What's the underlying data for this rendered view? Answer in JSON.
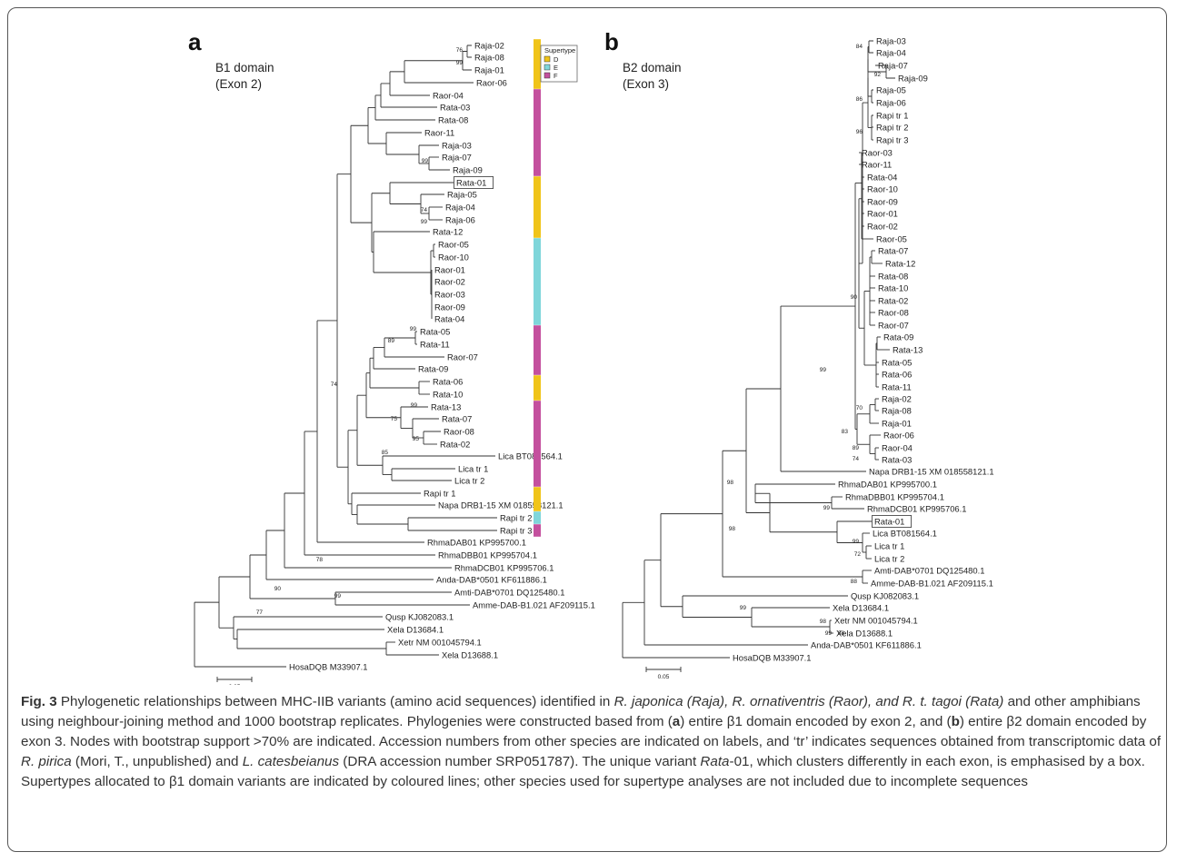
{
  "panels": [
    {
      "letter": "a",
      "title_line1": "B1 domain",
      "title_line2": "(Exon 2)",
      "scale_label": "0.05",
      "leaves": [
        "Raja-02",
        "Raja-08",
        "Raja-01",
        "Raor-06",
        "Raor-04",
        "Rata-03",
        "Rata-08",
        "Raor-11",
        "Raja-03",
        "Raja-07",
        "Raja-09",
        "Rata-01",
        "Raja-05",
        "Raja-04",
        "Raja-06",
        "Rata-12",
        "Raor-05",
        "Raor-10",
        "Raor-01",
        "Raor-02",
        "Raor-03",
        "Raor-09",
        "Rata-04",
        "Rata-05",
        "Rata-11",
        "Raor-07",
        "Rata-09",
        "Rata-06",
        "Rata-10",
        "Rata-13",
        "Rata-07",
        "Raor-08",
        "Rata-02",
        "Lica BT081564.1",
        "Lica tr 1",
        "Lica tr 2",
        "Rapi tr 1",
        "Napa DRB1-15 XM 018558121.1",
        "Rapi tr 2",
        "Rapi tr 3",
        "RhmaDAB01 KP995700.1",
        "RhmaDBB01 KP995704.1",
        "RhmaDCB01 KP995706.1",
        "Anda-DAB*0501 KF611886.1",
        "Amti-DAB*0701 DQ125480.1",
        "Amme-DAB-B1.021 AF209115.1",
        "Qusp KJ082083.1",
        "Xela D13684.1",
        "Xetr NM 001045794.1",
        "Xela D13688.1",
        "HosaDQB M33907.1"
      ],
      "boxed_leaf": "Rata-01",
      "bootstraps": [
        "76",
        "99",
        "99",
        "74",
        "99",
        "99",
        "89",
        "99",
        "75",
        "95",
        "85",
        "74",
        "78",
        "90",
        "77",
        "99"
      ]
    },
    {
      "letter": "b",
      "title_line1": "B2 domain",
      "title_line2": "(Exon 3)",
      "scale_label": "0.05",
      "leaves": [
        "Raja-03",
        "Raja-04",
        "Raja-07",
        "Raja-09",
        "Raja-05",
        "Raja-06",
        "Rapi tr 1",
        "Rapi tr 2",
        "Rapi tr 3",
        "Raor-03",
        "Raor-11",
        "Rata-04",
        "Raor-10",
        "Raor-09",
        "Raor-01",
        "Raor-02",
        "Raor-05",
        "Rata-07",
        "Rata-12",
        "Rata-08",
        "Rata-10",
        "Rata-02",
        "Raor-08",
        "Raor-07",
        "Rata-09",
        "Rata-13",
        "Rata-05",
        "Rata-06",
        "Rata-11",
        "Raja-02",
        "Raja-08",
        "Raja-01",
        "Raor-06",
        "Raor-04",
        "Rata-03",
        "Napa DRB1-15 XM 018558121.1",
        "RhmaDAB01 KP995700.1",
        "RhmaDBB01 KP995704.1",
        "RhmaDCB01 KP995706.1",
        "Rata-01",
        "Lica BT081564.1",
        "Lica tr 1",
        "Lica tr 2",
        "Amti-DAB*0701 DQ125480.1",
        "Amme-DAB-B1.021 AF209115.1",
        "Qusp KJ082083.1",
        "Xela D13684.1",
        "Xetr NM 001045794.1",
        "Xela D13688.1",
        "Anda-DAB*0501 KF611886.1",
        "HosaDQB M33907.1"
      ],
      "boxed_leaf": "Rata-01",
      "bootstraps": [
        "84",
        "92",
        "86",
        "96",
        "90",
        "99",
        "70",
        "83",
        "89",
        "74",
        "98",
        "99",
        "98",
        "99",
        "72",
        "88",
        "99",
        "98",
        "99",
        "88"
      ]
    }
  ],
  "legend": {
    "title": "Supertype",
    "items": [
      {
        "label": "D",
        "color": "#f0c419"
      },
      {
        "label": "E",
        "color": "#7fd6da"
      },
      {
        "label": "F",
        "color": "#c4509e"
      }
    ],
    "bar_segments": [
      {
        "supertype": "D",
        "color": "#f0c419",
        "from_leaf": "Raja-02",
        "to_leaf": "Raor-06"
      },
      {
        "supertype": "F",
        "color": "#c4509e",
        "from_leaf": "Raor-04",
        "to_leaf": "Raja-09"
      },
      {
        "supertype": "D",
        "color": "#f0c419",
        "from_leaf": "Rata-01",
        "to_leaf": "Rata-12"
      },
      {
        "supertype": "E",
        "color": "#7fd6da",
        "from_leaf": "Raor-05",
        "to_leaf": "Rata-04"
      },
      {
        "supertype": "F",
        "color": "#c4509e",
        "from_leaf": "Rata-05",
        "to_leaf": "Rata-09"
      },
      {
        "supertype": "D",
        "color": "#f0c419",
        "from_leaf": "Rata-06",
        "to_leaf": "Rata-10"
      },
      {
        "supertype": "F",
        "color": "#c4509e",
        "from_leaf": "Rata-13",
        "to_leaf": "Lica tr 2"
      },
      {
        "supertype": "D",
        "color": "#f0c419",
        "from_leaf": "Rapi tr 1",
        "to_leaf": "Napa DRB1-15 XM 018558121.1"
      },
      {
        "supertype": "E",
        "color": "#7fd6da",
        "from_leaf": "Rapi tr 2",
        "to_leaf": "Rapi tr 2"
      },
      {
        "supertype": "F",
        "color": "#c4509e",
        "from_leaf": "Rapi tr 3",
        "to_leaf": "Rapi tr 3"
      }
    ]
  },
  "caption": {
    "fig_label": "Fig. 3",
    "s1": " Phylogenetic relationships between MHC-IIB variants (amino acid sequences) identified in ",
    "s2": "R. japonica (Raja), R. ornativentris (Raor), and R. t. tagoi (Rata)",
    "s3": " and other amphibians using neighbour-joining method and 1000 bootstrap replicates. Phylogenies were constructed based from (",
    "s4": "a",
    "s5": ") entire β1 domain encoded by exon 2, and (",
    "s6": "b",
    "s7": ") entire β2 domain encoded by exon 3. Nodes with bootstrap support >70% are indicated. Accession numbers from other species are indicated on labels, and ‘tr’ indicates sequences obtained from transcriptomic data of ",
    "s8": "R. pirica",
    "s9": " (Mori, T., unpublished) and ",
    "s10": "L. catesbeianus",
    "s11": " (DRA accession number SRP051787). The unique variant ",
    "s12": "Rata",
    "s13": "-01, which clusters differently in each exon, is emphasised by a box. Supertypes allocated to β1 domain variants are indicated by coloured lines; other species used for supertype analyses are not included due to incomplete sequences"
  }
}
